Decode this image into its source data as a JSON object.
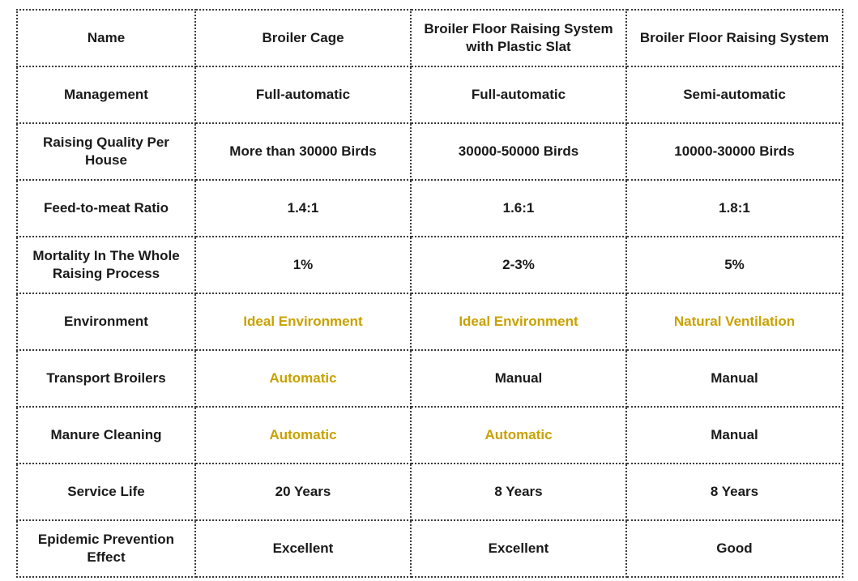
{
  "columns": [
    "Name",
    "Broiler Cage",
    "Broiler Floor Raising System with Plastic Slat",
    "Broiler Floor Raising System"
  ],
  "rows": [
    {
      "label": "Management",
      "cells": [
        "Full-automatic",
        "Full-automatic",
        "Semi-automatic"
      ]
    },
    {
      "label": "Raising Quality Per House",
      "cells": [
        "More than 30000 Birds",
        "30000-50000 Birds",
        "10000-30000 Birds"
      ]
    },
    {
      "label": "Feed-to-meat Ratio",
      "cells": [
        "1.4:1",
        "1.6:1",
        "1.8:1"
      ]
    },
    {
      "label": "Mortality In The Whole Raising Process",
      "cells": [
        "1%",
        "2-3%",
        "5%"
      ]
    },
    {
      "label": "Environment",
      "cells": [
        "Ideal Environment",
        "Ideal Environment",
        "Natural Ventilation"
      ]
    },
    {
      "label": "Transport Broilers",
      "cells": [
        "Automatic",
        "Manual",
        "Manual"
      ]
    },
    {
      "label": "Manure Cleaning",
      "cells": [
        "Automatic",
        "Automatic",
        "Manual"
      ]
    },
    {
      "label": "Service Life",
      "cells": [
        "20 Years",
        "8 Years",
        "8 Years"
      ]
    },
    {
      "label": "Epidemic Prevention Effect",
      "cells": [
        "Excellent",
        "Excellent",
        "Good"
      ]
    }
  ],
  "colors": {
    "text": "#1a1a1a",
    "highlight": "#c9a100",
    "border": "#3a3a3a"
  }
}
